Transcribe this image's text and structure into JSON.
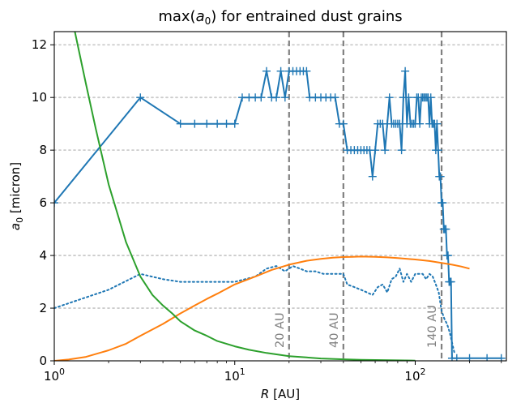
{
  "chart_data": {
    "type": "line",
    "title": "max(a0) for entrained dust grains",
    "title_parts": [
      "max(",
      "a",
      "0",
      ") for entrained dust grains"
    ],
    "xlabel_parts": [
      "R",
      " [AU]"
    ],
    "ylabel_parts": [
      "a",
      "0",
      " [micron]"
    ],
    "xscale": "log",
    "xlim": [
      1,
      320
    ],
    "ylim": [
      0,
      12.5
    ],
    "grid": "y dotted",
    "x_ticks": [
      {
        "value": 1,
        "base": "10",
        "exp": "0"
      },
      {
        "value": 10,
        "base": "10",
        "exp": "1"
      },
      {
        "value": 100,
        "base": "10",
        "exp": "2"
      }
    ],
    "y_ticks": [
      {
        "value": 0,
        "label": "0"
      },
      {
        "value": 2,
        "label": "2"
      },
      {
        "value": 4,
        "label": "4"
      },
      {
        "value": 6,
        "label": "6"
      },
      {
        "value": 8,
        "label": "8"
      },
      {
        "value": 10,
        "label": "10"
      },
      {
        "value": 12,
        "label": "12"
      }
    ],
    "vlines": [
      {
        "x": 20,
        "label": "20 AU"
      },
      {
        "x": 40,
        "label": "40 AU"
      },
      {
        "x": 140,
        "label": "140 AU"
      }
    ],
    "series": [
      {
        "style": "solid-markers",
        "color": "#1f77b4",
        "x": [
          1,
          3,
          5,
          6,
          7,
          8,
          9,
          10,
          11,
          12,
          13,
          14,
          15,
          16,
          17,
          18,
          19,
          20,
          21,
          22,
          23,
          24,
          25,
          26,
          28,
          30,
          32,
          34,
          36,
          38,
          40,
          42,
          44,
          46,
          48,
          50,
          52,
          54,
          56,
          58,
          60,
          62,
          64,
          66,
          68,
          70,
          72,
          74,
          76,
          78,
          80,
          82,
          84,
          86,
          88,
          90,
          92,
          94,
          96,
          98,
          100,
          102,
          104,
          106,
          108,
          110,
          112,
          114,
          116,
          118,
          120,
          122,
          124,
          126,
          128,
          130,
          132,
          134,
          136,
          138,
          140,
          142,
          144,
          146,
          148,
          150,
          152,
          154,
          156,
          158,
          160,
          170,
          200,
          250,
          300
        ],
        "y": [
          6,
          10,
          9,
          9,
          9,
          9,
          9,
          9,
          10,
          10,
          10,
          10,
          11,
          10,
          10,
          11,
          10,
          11,
          11,
          11,
          11,
          11,
          11,
          10,
          10,
          10,
          10,
          10,
          10,
          9,
          9,
          8,
          8,
          8,
          8,
          8,
          8,
          8,
          8,
          7,
          8,
          9,
          9,
          9,
          8,
          9,
          10,
          9,
          9,
          9,
          9,
          9,
          8,
          10,
          11,
          9,
          10,
          9,
          9,
          9,
          9,
          10,
          10,
          9,
          10,
          10,
          10,
          10,
          10,
          10,
          9,
          10,
          9,
          9,
          9,
          8,
          9,
          8,
          7,
          7,
          6,
          6,
          5,
          5,
          5,
          4,
          4,
          3,
          3,
          3,
          0.1,
          0.1,
          0.1,
          0.1,
          0.1
        ]
      },
      {
        "style": "dotted",
        "color": "#1f77b4",
        "x": [
          1,
          2,
          3,
          4,
          5,
          7,
          10,
          13,
          15,
          17,
          19,
          21,
          23,
          25,
          28,
          31,
          35,
          38,
          40,
          42,
          46,
          50,
          54,
          58,
          62,
          66,
          70,
          74,
          78,
          82,
          86,
          90,
          95,
          100,
          105,
          110,
          115,
          120,
          125,
          130,
          135,
          140,
          145,
          150,
          155,
          160,
          165
        ],
        "y": [
          2,
          2.7,
          3.3,
          3.1,
          3.0,
          3.0,
          3.0,
          3.2,
          3.5,
          3.6,
          3.4,
          3.6,
          3.5,
          3.4,
          3.4,
          3.3,
          3.3,
          3.3,
          3.3,
          2.9,
          2.8,
          2.7,
          2.6,
          2.5,
          2.8,
          2.9,
          2.6,
          3.1,
          3.2,
          3.5,
          3.0,
          3.3,
          3.0,
          3.3,
          3.3,
          3.3,
          3.1,
          3.3,
          3.2,
          2.9,
          2.6,
          1.9,
          1.6,
          1.4,
          1.1,
          0.7,
          0.3
        ]
      },
      {
        "style": "solid",
        "color": "#ff7f0e",
        "x": [
          1,
          1.2,
          1.5,
          2,
          2.5,
          3,
          4,
          5,
          6,
          7,
          8,
          10,
          13,
          16,
          20,
          25,
          30,
          35,
          40,
          45,
          50,
          60,
          70,
          80,
          100,
          120,
          140,
          160,
          180,
          200
        ],
        "y": [
          0,
          0.05,
          0.15,
          0.4,
          0.65,
          0.95,
          1.4,
          1.8,
          2.1,
          2.35,
          2.55,
          2.9,
          3.2,
          3.45,
          3.65,
          3.8,
          3.87,
          3.92,
          3.94,
          3.95,
          3.96,
          3.95,
          3.93,
          3.9,
          3.85,
          3.79,
          3.72,
          3.65,
          3.58,
          3.5
        ]
      },
      {
        "style": "solid",
        "color": "#2ca02c",
        "x": [
          1.3,
          1.5,
          1.7,
          2,
          2.5,
          3,
          3.5,
          4,
          4.5,
          5,
          6,
          7,
          8,
          10,
          12,
          15,
          20,
          25,
          30,
          40,
          50,
          60,
          80,
          100
        ],
        "y": [
          12.5,
          10.5,
          8.8,
          6.7,
          4.5,
          3.2,
          2.5,
          2.1,
          1.8,
          1.5,
          1.15,
          0.95,
          0.75,
          0.55,
          0.42,
          0.3,
          0.18,
          0.13,
          0.09,
          0.06,
          0.04,
          0.03,
          0.02,
          0.01
        ]
      }
    ]
  }
}
